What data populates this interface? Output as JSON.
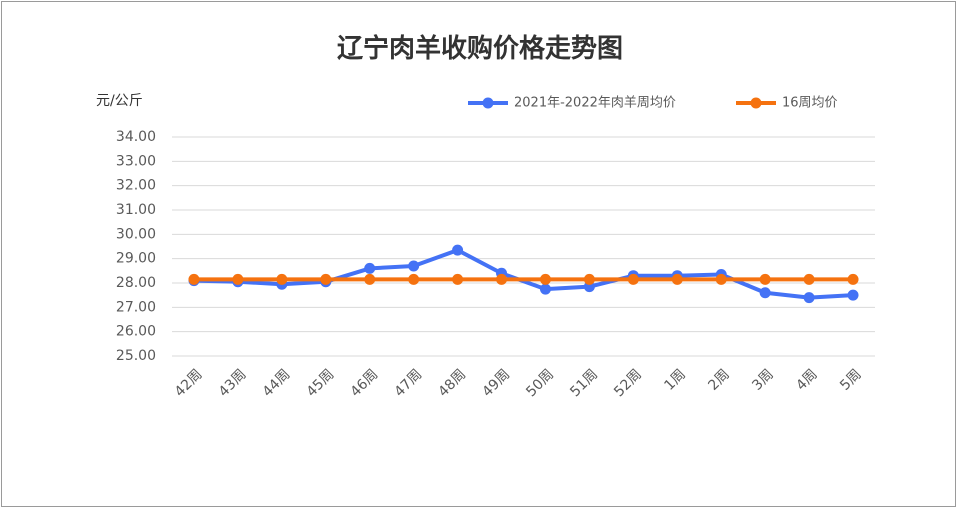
{
  "chart_data": {
    "type": "line",
    "title": "辽宁肉羊收购价格走势图",
    "y_label": "元/公斤",
    "categories": [
      "42周",
      "43周",
      "44周",
      "45周",
      "46周",
      "47周",
      "48周",
      "49周",
      "50周",
      "51周",
      "52周",
      "1周",
      "2周",
      "3周",
      "4周",
      "5周"
    ],
    "series": [
      {
        "name": "2021年-2022年肉羊周均价",
        "color": "#4472f5",
        "values": [
          28.1,
          28.05,
          27.95,
          28.05,
          28.6,
          28.7,
          29.35,
          28.4,
          27.75,
          27.85,
          28.3,
          28.3,
          28.35,
          27.6,
          27.4,
          27.5
        ]
      },
      {
        "name": "16周均价",
        "color": "#f5720f",
        "values": [
          28.15,
          28.15,
          28.15,
          28.15,
          28.15,
          28.15,
          28.15,
          28.15,
          28.15,
          28.15,
          28.15,
          28.15,
          28.15,
          28.15,
          28.15,
          28.15
        ]
      }
    ],
    "ylim": [
      25,
      34
    ],
    "yticks": [
      {
        "value": 25,
        "label": "25.00"
      },
      {
        "value": 26,
        "label": "26.00"
      },
      {
        "value": 27,
        "label": "27.00"
      },
      {
        "value": 28,
        "label": "28.00"
      },
      {
        "value": 29,
        "label": "29.00"
      },
      {
        "value": 30,
        "label": "30.00"
      },
      {
        "value": 31,
        "label": "31.00"
      },
      {
        "value": 32,
        "label": "32.00"
      },
      {
        "value": 33,
        "label": "33.00"
      },
      {
        "value": 34,
        "label": "34.00"
      }
    ],
    "grid": true
  }
}
